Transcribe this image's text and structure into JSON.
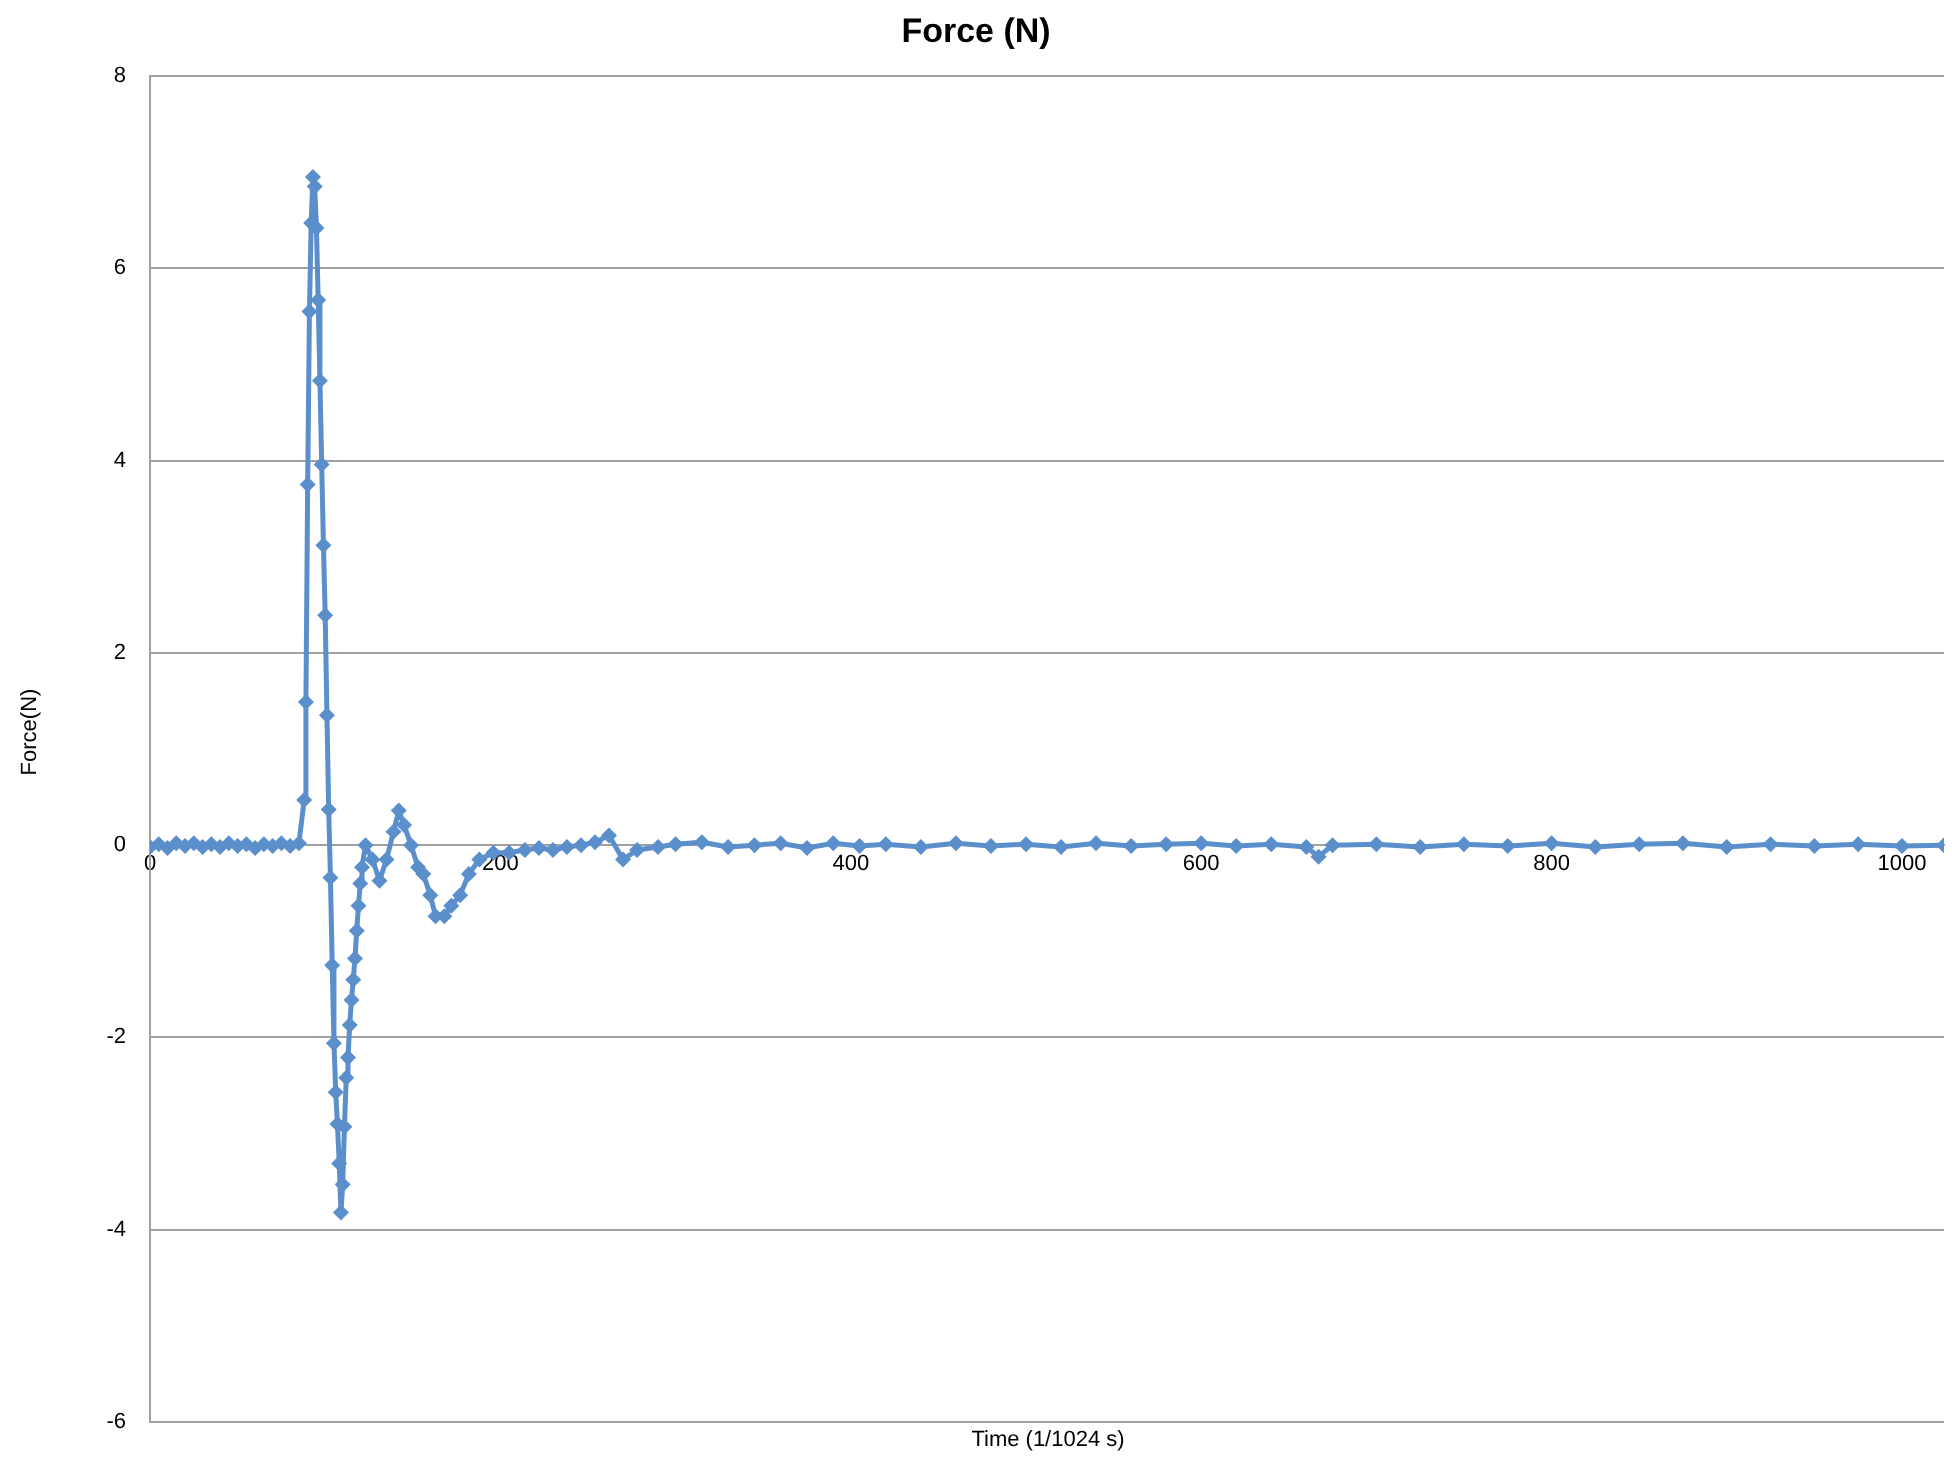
{
  "chart_data": {
    "type": "line",
    "title": "Force (N)",
    "xlabel": "Time (1/1024 s)",
    "ylabel": "Force(N)",
    "x": [
      0,
      5,
      10,
      15,
      20,
      25,
      30,
      35,
      40,
      45,
      50,
      55,
      60,
      65,
      70,
      75,
      80,
      85,
      88,
      89,
      90,
      91,
      92,
      93,
      94,
      95,
      96,
      97,
      98,
      99,
      100,
      101,
      102,
      103,
      104,
      105,
      106,
      107,
      108,
      109,
      110,
      111,
      112,
      113,
      114,
      115,
      116,
      117,
      118,
      119,
      120,
      121,
      123,
      127,
      131,
      135,
      139,
      142,
      145,
      149,
      153,
      156,
      160,
      163,
      168,
      172,
      177,
      182,
      188,
      196,
      205,
      214,
      222,
      230,
      238,
      246,
      254,
      262,
      270,
      278,
      290,
      300,
      315,
      330,
      345,
      360,
      375,
      390,
      405,
      420,
      440,
      460,
      480,
      500,
      520,
      540,
      560,
      580,
      600,
      620,
      640,
      660,
      667,
      675,
      700,
      725,
      750,
      775,
      800,
      825,
      850,
      875,
      900,
      925,
      950,
      975,
      1000,
      1024
    ],
    "series": [
      {
        "color": "#5b8fcc",
        "values": [
          -0.02,
          0.01,
          -0.03,
          0.02,
          -0.01,
          0.02,
          -0.02,
          0.01,
          -0.02,
          0.02,
          -0.01,
          0.01,
          -0.03,
          0.01,
          -0.01,
          0.02,
          -0.01,
          0.02,
          0.47,
          1.49,
          3.75,
          5.55,
          6.47,
          6.95,
          6.85,
          6.42,
          5.67,
          4.83,
          3.96,
          3.12,
          2.39,
          1.35,
          0.37,
          -0.34,
          -1.25,
          -2.06,
          -2.57,
          -2.9,
          -3.31,
          -3.82,
          -3.53,
          -2.93,
          -2.42,
          -2.21,
          -1.87,
          -1.61,
          -1.4,
          -1.18,
          -0.89,
          -0.63,
          -0.4,
          -0.23,
          0.0,
          -0.15,
          -0.37,
          -0.15,
          0.14,
          0.36,
          0.21,
          0,
          -0.23,
          -0.3,
          -0.52,
          -0.74,
          -0.74,
          -0.63,
          -0.52,
          -0.3,
          -0.15,
          -0.08,
          -0.08,
          -0.05,
          -0.03,
          -0.05,
          -0.02,
          0.0,
          0.03,
          0.1,
          -0.15,
          -0.05,
          -0.02,
          0.01,
          0.03,
          -0.02,
          0.0,
          0.02,
          -0.03,
          0.02,
          -0.01,
          0.01,
          -0.02,
          0.02,
          -0.01,
          0.01,
          -0.02,
          0.02,
          -0.01,
          0.01,
          0.02,
          -0.01,
          0.01,
          -0.02,
          -0.12,
          0.0,
          0.01,
          -0.02,
          0.01,
          -0.01,
          0.02,
          -0.02,
          0.01,
          0.02,
          -0.02,
          0.01,
          -0.01,
          0.01,
          -0.01,
          0.0
        ]
      }
    ],
    "xlim": [
      0,
      1024
    ],
    "xticks": [
      0,
      200,
      400,
      600,
      800,
      1000
    ],
    "ylim": [
      -6,
      8
    ],
    "yticks": [
      -6,
      -4,
      -2,
      0,
      2,
      4,
      6,
      8
    ],
    "grid": "y",
    "legend": false,
    "marker": "diamond",
    "line_style": "solid"
  }
}
